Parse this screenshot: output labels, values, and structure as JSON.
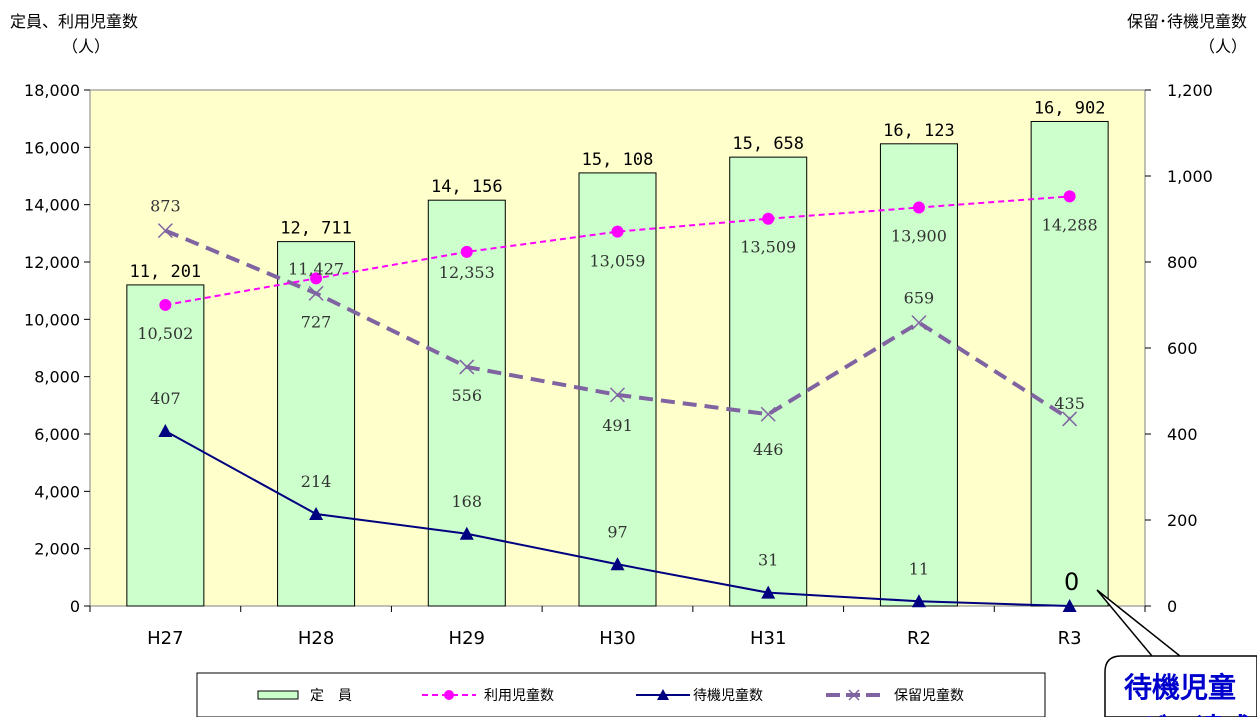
{
  "chart_data": {
    "type": "bar",
    "categories": [
      "H27",
      "H28",
      "H29",
      "H30",
      "H31",
      "R2",
      "R3"
    ],
    "left_axis": {
      "title": "定員、利用児童数",
      "unit": "（人）",
      "ylim": [
        0,
        18000
      ],
      "ticks": [
        "0",
        "2,000",
        "4,000",
        "6,000",
        "8,000",
        "10,000",
        "12,000",
        "14,000",
        "16,000",
        "18,000"
      ]
    },
    "right_axis": {
      "title": "保留･待機児童数",
      "unit": "（人）",
      "ylim": [
        0,
        1200
      ],
      "ticks": [
        "0",
        "200",
        "400",
        "600",
        "800",
        "1,000",
        "1,200"
      ]
    },
    "series": [
      {
        "name": "定　員",
        "type": "bar",
        "axis": "left",
        "color": "#ccffcc",
        "values": [
          11201,
          12711,
          14156,
          15108,
          15658,
          16123,
          16902
        ],
        "labels": [
          "11, 201",
          "12, 711",
          "14, 156",
          "15, 108",
          "15, 658",
          "16, 123",
          "16, 902"
        ]
      },
      {
        "name": "利用児童数",
        "type": "line",
        "axis": "left",
        "color": "#ff00ff",
        "values": [
          10502,
          11427,
          12353,
          13059,
          13509,
          13900,
          14288
        ],
        "labels": [
          "10,502",
          "11,427",
          "12,353",
          "13,059",
          "13,509",
          "13,900",
          "14,288"
        ]
      },
      {
        "name": "待機児童数",
        "type": "line",
        "axis": "right",
        "color": "#000080",
        "values": [
          407,
          214,
          168,
          97,
          31,
          11,
          0
        ],
        "labels": [
          "407",
          "214",
          "168",
          "97",
          "31",
          "11",
          "0"
        ]
      },
      {
        "name": "保留児童数",
        "type": "line",
        "axis": "right",
        "color": "#8064a2",
        "values": [
          873,
          727,
          556,
          491,
          446,
          659,
          435
        ],
        "labels": [
          "873",
          "727",
          "556",
          "491",
          "446",
          "659",
          "435"
        ]
      }
    ],
    "plot_background": "#ffffcc",
    "legend": "bottom-center",
    "callout": {
      "line1": "待機児童",
      "line2": "ゼロ達成"
    }
  }
}
